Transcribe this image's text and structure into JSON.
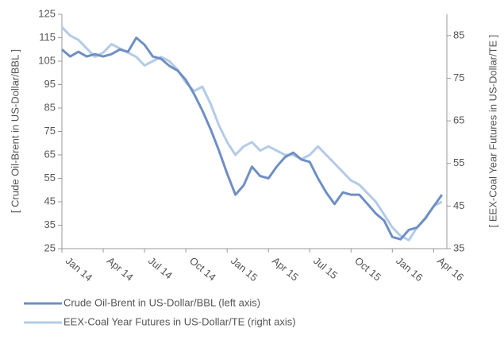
{
  "chart_data": {
    "type": "line",
    "y_label": "[ Crude Oil-Brent in US-Dollar/BBL ]",
    "y2_label": "[ EEX-Coal Year Futures in US-Dollar/TE ]",
    "x": [
      2014.0,
      2014.05,
      2014.1,
      2014.15,
      2014.2,
      2014.25,
      2014.3,
      2014.35,
      2014.4,
      2014.45,
      2014.5,
      2014.55,
      2014.6,
      2014.65,
      2014.7,
      2014.75,
      2014.8,
      2014.85,
      2014.9,
      2014.95,
      2015.0,
      2015.05,
      2015.1,
      2015.15,
      2015.2,
      2015.25,
      2015.3,
      2015.35,
      2015.4,
      2015.45,
      2015.5,
      2015.55,
      2015.6,
      2015.65,
      2015.7,
      2015.75,
      2015.8,
      2015.85,
      2015.9,
      2015.95,
      2016.0,
      2016.05,
      2016.1,
      2016.15,
      2016.2,
      2016.25,
      2016.3
    ],
    "series": [
      {
        "name": "Crude Oil-Brent in US-Dollar/BBL (left axis)",
        "color": "#6f8fc4",
        "values": [
          110,
          107,
          109,
          107,
          108,
          107,
          108,
          110,
          109,
          115,
          112,
          107,
          106,
          103,
          101,
          97,
          91,
          84,
          76,
          67,
          57,
          48,
          52,
          60,
          56,
          55,
          60,
          64,
          66,
          63,
          62,
          55,
          49,
          44,
          49,
          48,
          48,
          44,
          40,
          37,
          30,
          29,
          33,
          34,
          38,
          43,
          48
        ]
      },
      {
        "name": "EEX-Coal Year Futures in US-Dollar/TE (right axis)",
        "color": "#b3cbe8",
        "axis": "y2",
        "values": [
          87,
          85,
          84,
          82,
          80,
          81,
          83,
          82,
          81,
          80,
          78,
          79,
          80,
          79,
          77,
          74,
          72,
          73,
          69,
          64,
          60,
          57,
          59,
          60,
          58,
          59,
          58,
          57,
          57,
          56,
          57,
          59,
          57,
          55,
          53,
          51,
          50,
          48,
          46,
          43,
          40,
          38,
          37,
          40,
          42,
          45,
          46
        ]
      }
    ],
    "xlim": [
      2014.0,
      2016.33
    ],
    "xticks": [
      {
        "value": 2014.0,
        "label": "Jan 14"
      },
      {
        "value": 2014.25,
        "label": "Apr 14"
      },
      {
        "value": 2014.5,
        "label": "Jul 14"
      },
      {
        "value": 2014.75,
        "label": "Oct 14"
      },
      {
        "value": 2015.0,
        "label": "Jan 15"
      },
      {
        "value": 2015.25,
        "label": "Apr 15"
      },
      {
        "value": 2015.5,
        "label": "Jul 15"
      },
      {
        "value": 2015.75,
        "label": "Oct 15"
      },
      {
        "value": 2016.0,
        "label": "Jan 16"
      },
      {
        "value": 2016.25,
        "label": "Apr 16"
      }
    ],
    "ylim": [
      25,
      125
    ],
    "yticks": [
      25,
      35,
      45,
      55,
      65,
      75,
      85,
      95,
      105,
      115,
      125
    ],
    "y2lim": [
      35,
      90
    ],
    "y2ticks": [
      35,
      45,
      55,
      65,
      75,
      85
    ]
  }
}
